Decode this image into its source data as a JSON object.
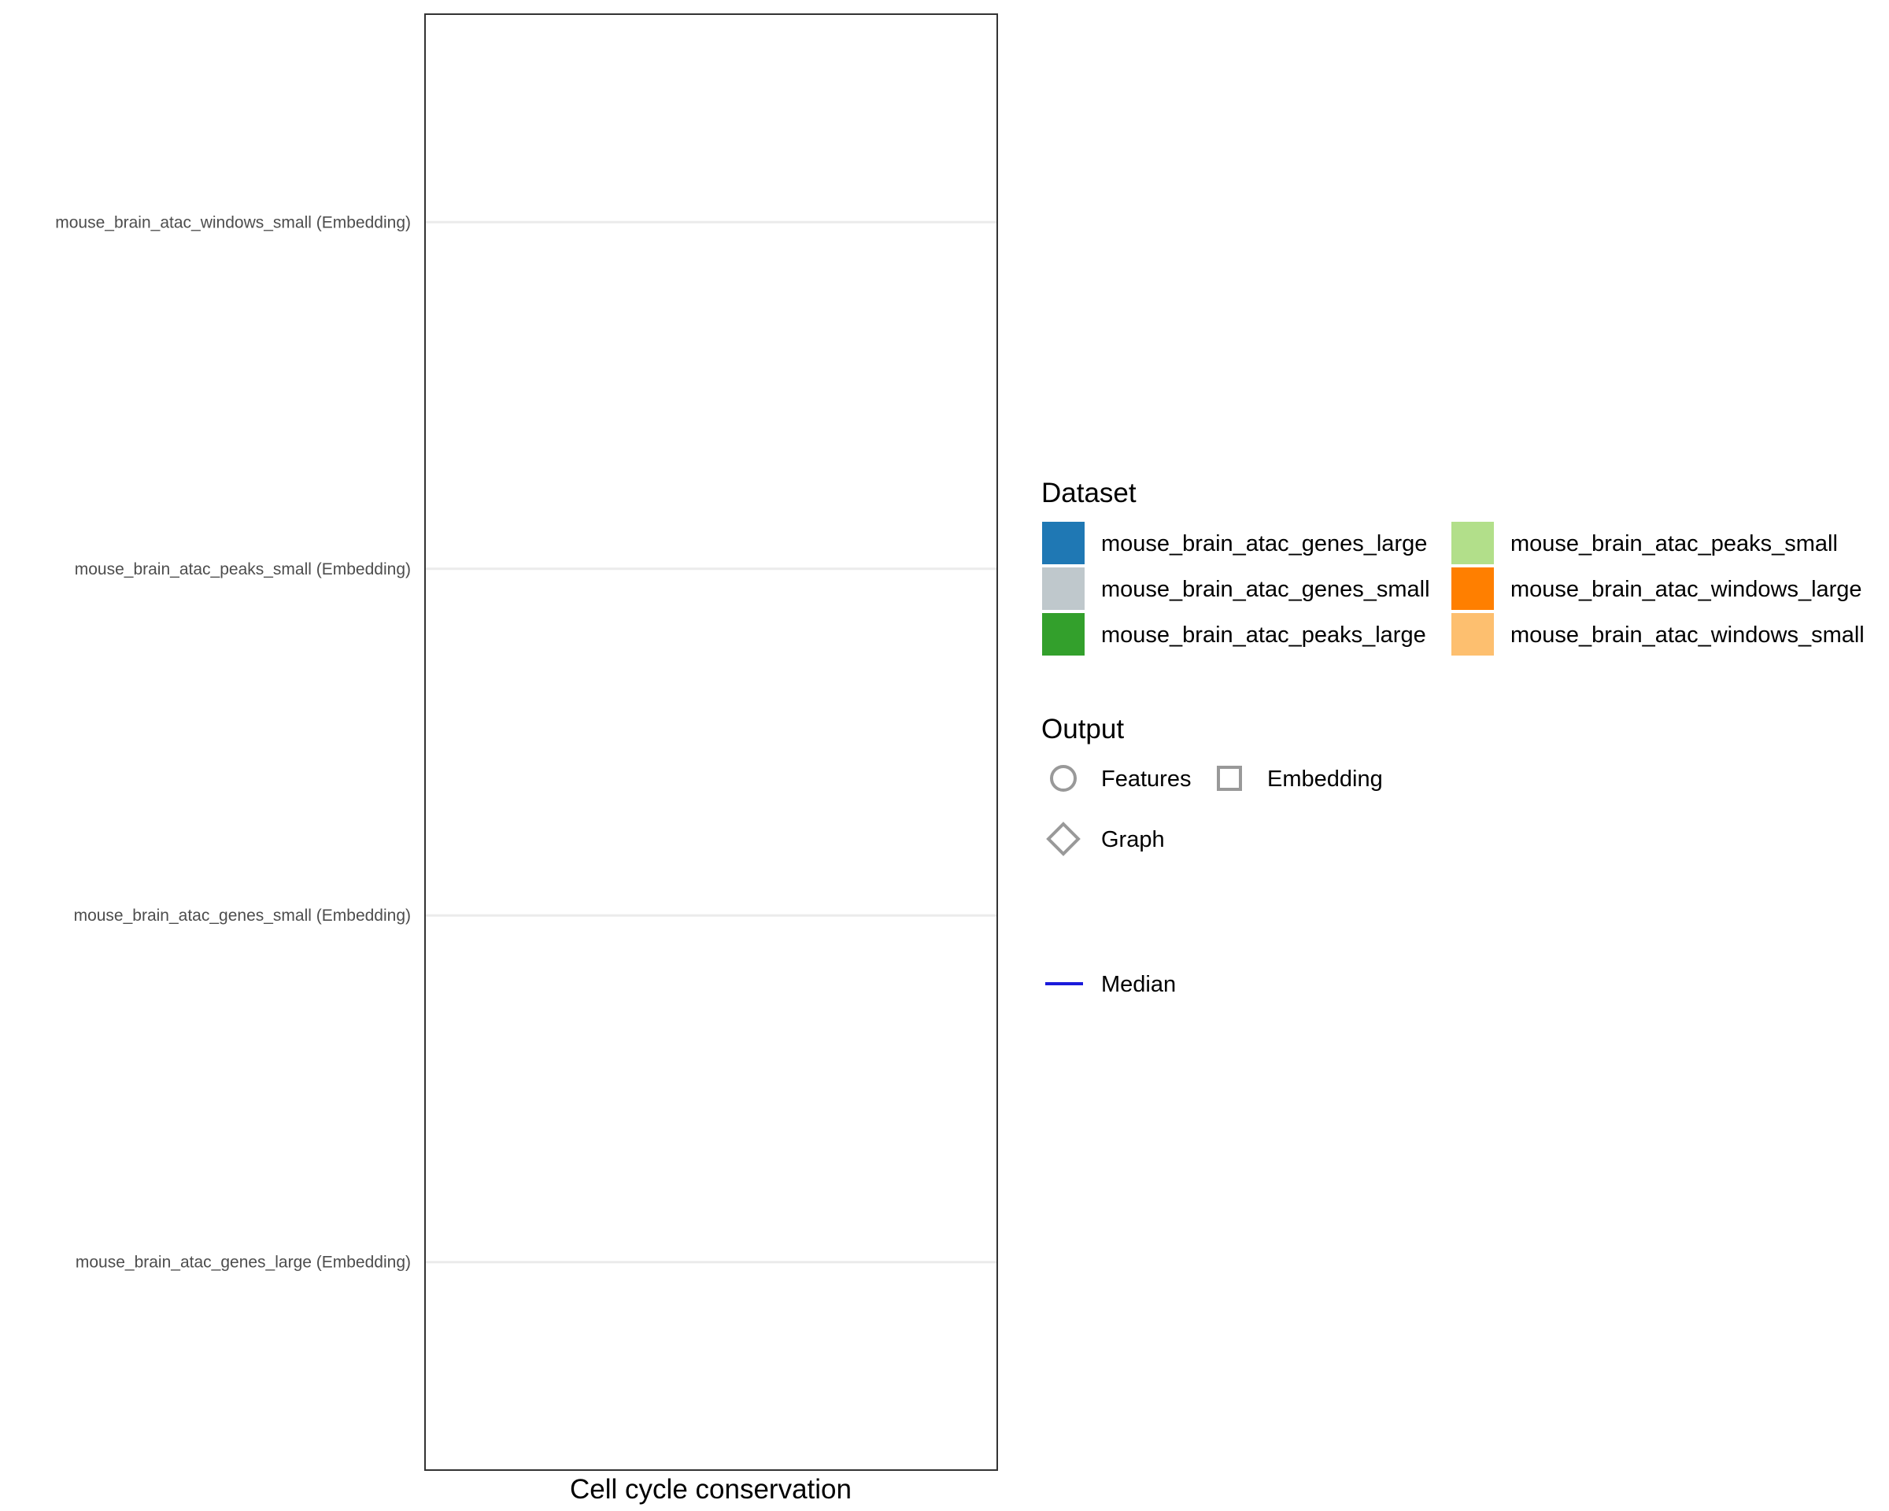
{
  "chart_data": {
    "type": "scatter",
    "title": "",
    "xlabel": "Cell cycle conservation",
    "ylabel": "",
    "categories": [
      "mouse_brain_atac_genes_large (Embedding)",
      "mouse_brain_atac_genes_small (Embedding)",
      "mouse_brain_atac_peaks_small (Embedding)",
      "mouse_brain_atac_windows_small (Embedding)"
    ],
    "series": [],
    "grid": "horizontal major",
    "legend_position": "right",
    "legend": {
      "dataset": {
        "title": "Dataset",
        "entries": [
          {
            "label": "mouse_brain_atac_genes_large",
            "color": "#1f78b4"
          },
          {
            "label": "mouse_brain_atac_genes_small",
            "color": "#bfc8cc"
          },
          {
            "label": "mouse_brain_atac_peaks_large",
            "color": "#33a02c"
          },
          {
            "label": "mouse_brain_atac_peaks_small",
            "color": "#b2df8a"
          },
          {
            "label": "mouse_brain_atac_windows_large",
            "color": "#ff7f00"
          },
          {
            "label": "mouse_brain_atac_windows_small",
            "color": "#fdbf6f"
          }
        ]
      },
      "output": {
        "title": "Output",
        "entries": [
          {
            "label": "Features",
            "shape": "circle"
          },
          {
            "label": "Embedding",
            "shape": "square"
          },
          {
            "label": "Graph",
            "shape": "diamond"
          }
        ]
      },
      "median": {
        "label": "Median",
        "color": "#1a1adb"
      }
    }
  }
}
